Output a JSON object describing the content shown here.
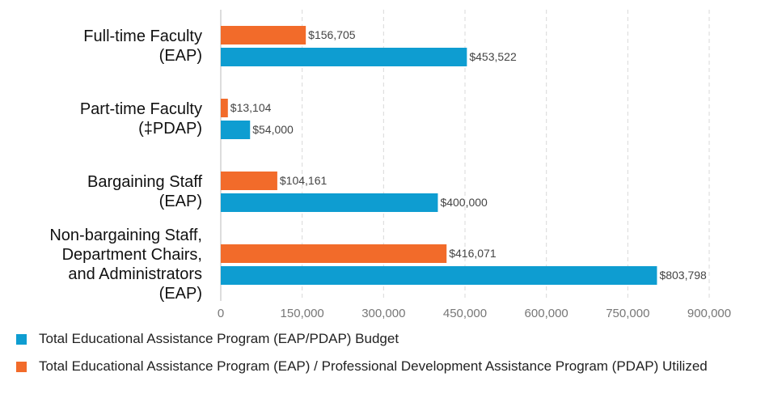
{
  "chart_data": {
    "type": "bar",
    "orientation": "horizontal",
    "categories": [
      "Full-time Faculty\n(EAP)",
      "Part-time Faculty\n(‡PDAP)",
      "Bargaining Staff\n(EAP)",
      "Non-bargaining Staff,\nDepartment Chairs,\nand Administrators\n(EAP)"
    ],
    "series": [
      {
        "name": "Total Educational Assistance Program (EAP) / Professional Development Assistance Program (PDAP) Utilized",
        "color": "#f26b2a",
        "values": [
          156705,
          13104,
          104161,
          416071
        ],
        "value_labels": [
          "$156,705",
          "$13,104",
          "$104,161",
          "$416,071"
        ]
      },
      {
        "name": "Total Educational Assistance Program (EAP/PDAP) Budget",
        "color": "#0e9dd1",
        "values": [
          453522,
          54000,
          400000,
          803798
        ],
        "value_labels": [
          "$453,522",
          "$54,000",
          "$400,000",
          "$803,798"
        ]
      }
    ],
    "xlim": [
      0,
      900000
    ],
    "xticks": [
      0,
      {
        "value": 150000,
        "label": "150,000"
      },
      {
        "value": 300000,
        "label": "300,000"
      },
      {
        "value": 450000,
        "label": "450,000"
      },
      {
        "value": 600000,
        "label": "600,000"
      },
      {
        "value": 750000,
        "label": "750,000"
      },
      {
        "value": 900000,
        "label": "900,000"
      }
    ],
    "grid": true
  }
}
